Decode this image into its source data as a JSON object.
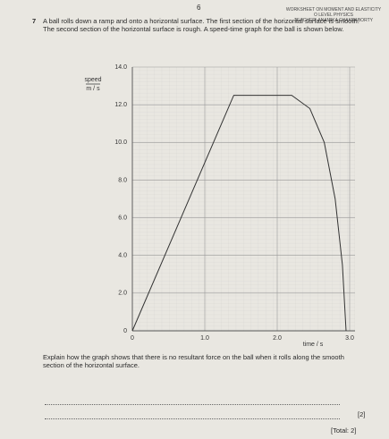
{
  "header": {
    "page_number": "6",
    "title": "WORKSHEET ON MOMENT AND ELASTICITY",
    "subject": "O LEVEL PHYSICS",
    "teacher": "TEACHER: ANAMIKA CHAKRABORTY"
  },
  "question": {
    "number": "7",
    "stem": "A ball rolls down a ramp and onto a horizontal surface. The first section of the horizontal surface is smooth. The second section of the horizontal surface is rough. A speed-time graph for the ball is shown below.",
    "prompt": "Explain how the graph shows that there is no resultant force on the ball when it rolls along the smooth section of the horizontal surface.",
    "marks": "[2]",
    "total": "[Total: 2]"
  },
  "chart_data": {
    "type": "line",
    "y_label": "speed",
    "y_unit": "m / s",
    "x_label": "time / s",
    "x": [
      0,
      1.4,
      2.2,
      2.45,
      2.65,
      2.8,
      2.9,
      2.95
    ],
    "series": [
      {
        "color": "#333333",
        "values": [
          0,
          12.5,
          12.5,
          11.8,
          10,
          7,
          3.5,
          0
        ]
      }
    ],
    "xlim": [
      0,
      3.0
    ],
    "ylim": [
      0,
      14.0
    ],
    "xticks": [
      0,
      {
        "value": 1,
        "label": "1.0"
      },
      {
        "value": 2,
        "label": "2.0"
      },
      {
        "value": 3,
        "label": "3.0"
      }
    ],
    "yticks": [
      0,
      {
        "value": 2,
        "label": "2.0"
      },
      {
        "value": 4,
        "label": "4.0"
      },
      {
        "value": 6,
        "label": "6.0"
      },
      {
        "value": 8,
        "label": "8.0"
      },
      {
        "value": 10,
        "label": "10.0"
      },
      {
        "value": 12,
        "label": "12.0"
      },
      {
        "value": 14,
        "label": "14.0"
      }
    ],
    "grid": true
  }
}
